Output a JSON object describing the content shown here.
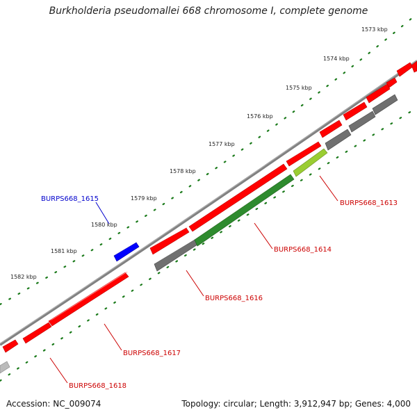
{
  "title": "Burkholderia pseudomallei 668 chromosome I, complete genome",
  "footer": {
    "accession": "Accession: NC_009074",
    "summary": "Topology: circular; Length: 3,912,947 bp; Genes: 4,000"
  },
  "colors": {
    "backbone": "#808080",
    "forward_cds": "#ff0000",
    "reverse_cds": "#ff0000",
    "highlight_gene": "#0000ff",
    "feature_grey": "#707070",
    "feature_light_grey": "#bbbbbb",
    "feature_green": "#2e8b2e",
    "feature_lightgreen": "#9acd32",
    "tick_dots": "#1a7a1a",
    "label_red": "#cc0000",
    "label_blue": "#0000cc"
  },
  "ticks": [
    {
      "label": "1573 kbp"
    },
    {
      "label": "1574 kbp"
    },
    {
      "label": "1575 kbp"
    },
    {
      "label": "1576 kbp"
    },
    {
      "label": "1577 kbp"
    },
    {
      "label": "1578 kbp"
    },
    {
      "label": "1579 kbp"
    },
    {
      "label": "1580 kbp"
    },
    {
      "label": "1581 kbp"
    },
    {
      "label": "1582 kbp"
    }
  ],
  "gene_labels": [
    {
      "id": "BURPS668_1615",
      "label": "BURPS668_1615",
      "color": "blue"
    },
    {
      "id": "BURPS668_1613",
      "label": "BURPS668_1613",
      "color": "red"
    },
    {
      "id": "BURPS668_1614",
      "label": "BURPS668_1614",
      "color": "red"
    },
    {
      "id": "BURPS668_1616",
      "label": "BURPS668_1616",
      "color": "red"
    },
    {
      "id": "BURPS668_1617",
      "label": "BURPS668_1617",
      "color": "red"
    },
    {
      "id": "BURPS668_1618",
      "label": "BURPS668_1618",
      "color": "red"
    }
  ]
}
